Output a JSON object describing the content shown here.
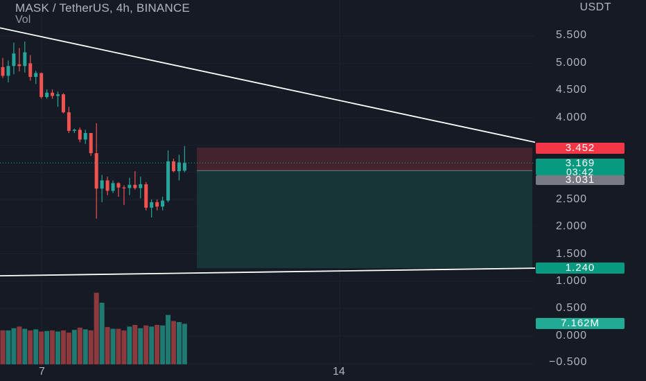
{
  "header": {
    "title": "MASK / TetherUS, 4h, BINANCE",
    "indicator": "Vol"
  },
  "axis": {
    "unit": "USDT",
    "price_ticks": [
      "5.500",
      "5.000",
      "4.500",
      "4.000",
      "2.500",
      "2.000",
      "1.500",
      "1.000"
    ],
    "volume_ticks": [
      "0.500",
      "0.000",
      "−0.500"
    ],
    "x_ticks": [
      "7",
      "14"
    ]
  },
  "tags": {
    "stop": {
      "label": "3.452",
      "color": "#f23645"
    },
    "current": {
      "label": "3.169",
      "countdown": "03:42",
      "color": "#089981"
    },
    "entry": {
      "label": "3.031",
      "color": "#787b86"
    },
    "target": {
      "label": "1.240",
      "color": "#089981"
    },
    "volume": {
      "label": "7.162M",
      "color": "#22ab94"
    }
  },
  "colors": {
    "up": "#26a69a",
    "down": "#ef5350",
    "up_volume": "#1f7a72",
    "down_volume": "#8c3a3e",
    "background": "#161a25",
    "trendline": "#ffffff",
    "risk_zone": "#4a2630",
    "reward_zone": "#17393a"
  },
  "chart_data": {
    "type": "candlestick",
    "title": "MASK / TetherUS, 4h, BINANCE",
    "y_unit": "USDT",
    "ylim": [
      0.9,
      5.9
    ],
    "volume_ylim": [
      -0.5,
      0.5
    ],
    "grid": true,
    "candles": [
      {
        "o": 4.93,
        "h": 5.1,
        "l": 4.73,
        "c": 4.77
      },
      {
        "o": 4.77,
        "h": 5.05,
        "l": 4.65,
        "c": 4.95
      },
      {
        "o": 4.95,
        "h": 5.38,
        "l": 4.8,
        "c": 5.18
      },
      {
        "o": 4.98,
        "h": 5.28,
        "l": 4.85,
        "c": 4.95
      },
      {
        "o": 4.95,
        "h": 5.4,
        "l": 4.83,
        "c": 5.2
      },
      {
        "o": 5.0,
        "h": 5.15,
        "l": 4.68,
        "c": 4.75
      },
      {
        "o": 4.75,
        "h": 4.86,
        "l": 4.62,
        "c": 4.82
      },
      {
        "o": 4.82,
        "h": 4.83,
        "l": 4.35,
        "c": 4.38
      },
      {
        "o": 4.38,
        "h": 4.52,
        "l": 4.35,
        "c": 4.46
      },
      {
        "o": 4.46,
        "h": 4.52,
        "l": 4.35,
        "c": 4.4
      },
      {
        "o": 4.4,
        "h": 4.48,
        "l": 4.2,
        "c": 4.43
      },
      {
        "o": 4.43,
        "h": 4.45,
        "l": 4.08,
        "c": 4.1
      },
      {
        "o": 4.1,
        "h": 4.2,
        "l": 3.72,
        "c": 3.76
      },
      {
        "o": 3.76,
        "h": 3.8,
        "l": 3.72,
        "c": 3.78
      },
      {
        "o": 3.78,
        "h": 3.82,
        "l": 3.55,
        "c": 3.6
      },
      {
        "o": 3.6,
        "h": 3.78,
        "l": 3.52,
        "c": 3.72
      },
      {
        "o": 3.72,
        "h": 3.72,
        "l": 3.3,
        "c": 3.35
      },
      {
        "o": 3.35,
        "h": 3.9,
        "l": 2.15,
        "c": 2.7
      },
      {
        "o": 2.7,
        "h": 2.95,
        "l": 2.45,
        "c": 2.85
      },
      {
        "o": 2.85,
        "h": 2.92,
        "l": 2.58,
        "c": 2.66
      },
      {
        "o": 2.66,
        "h": 2.85,
        "l": 2.62,
        "c": 2.8
      },
      {
        "o": 2.8,
        "h": 2.82,
        "l": 2.55,
        "c": 2.72
      },
      {
        "o": 2.72,
        "h": 2.76,
        "l": 2.4,
        "c": 2.71
      },
      {
        "o": 2.71,
        "h": 2.9,
        "l": 2.58,
        "c": 2.77
      },
      {
        "o": 2.77,
        "h": 3.02,
        "l": 2.68,
        "c": 2.71
      },
      {
        "o": 2.71,
        "h": 2.92,
        "l": 2.52,
        "c": 2.78
      },
      {
        "o": 2.78,
        "h": 2.82,
        "l": 2.3,
        "c": 2.35
      },
      {
        "o": 2.35,
        "h": 2.5,
        "l": 2.17,
        "c": 2.45
      },
      {
        "o": 2.45,
        "h": 2.5,
        "l": 2.3,
        "c": 2.37
      },
      {
        "o": 2.37,
        "h": 2.55,
        "l": 2.3,
        "c": 2.48
      },
      {
        "o": 2.48,
        "h": 3.4,
        "l": 2.45,
        "c": 3.2
      },
      {
        "o": 3.2,
        "h": 3.25,
        "l": 3.0,
        "c": 3.02
      },
      {
        "o": 3.02,
        "h": 3.32,
        "l": 2.85,
        "c": 3.18
      },
      {
        "o": 3.03,
        "h": 3.48,
        "l": 3.0,
        "c": 3.17
      }
    ],
    "volume": [
      0.1,
      0.1,
      0.14,
      0.17,
      0.13,
      0.1,
      0.12,
      0.08,
      0.09,
      0.1,
      0.08,
      0.1,
      0.06,
      0.11,
      0.15,
      0.12,
      0.1,
      0.78,
      0.6,
      0.16,
      0.13,
      0.13,
      0.1,
      0.17,
      0.2,
      0.14,
      0.19,
      0.17,
      0.2,
      0.19,
      0.38,
      0.27,
      0.25,
      0.22
    ],
    "trendlines": [
      {
        "from": 5.65,
        "to": 3.55
      },
      {
        "from": 1.1,
        "to": 1.24
      }
    ],
    "position": {
      "stop": 3.452,
      "entry": 3.031,
      "target": 1.24
    },
    "x_ticks": [
      "7",
      "14"
    ]
  }
}
